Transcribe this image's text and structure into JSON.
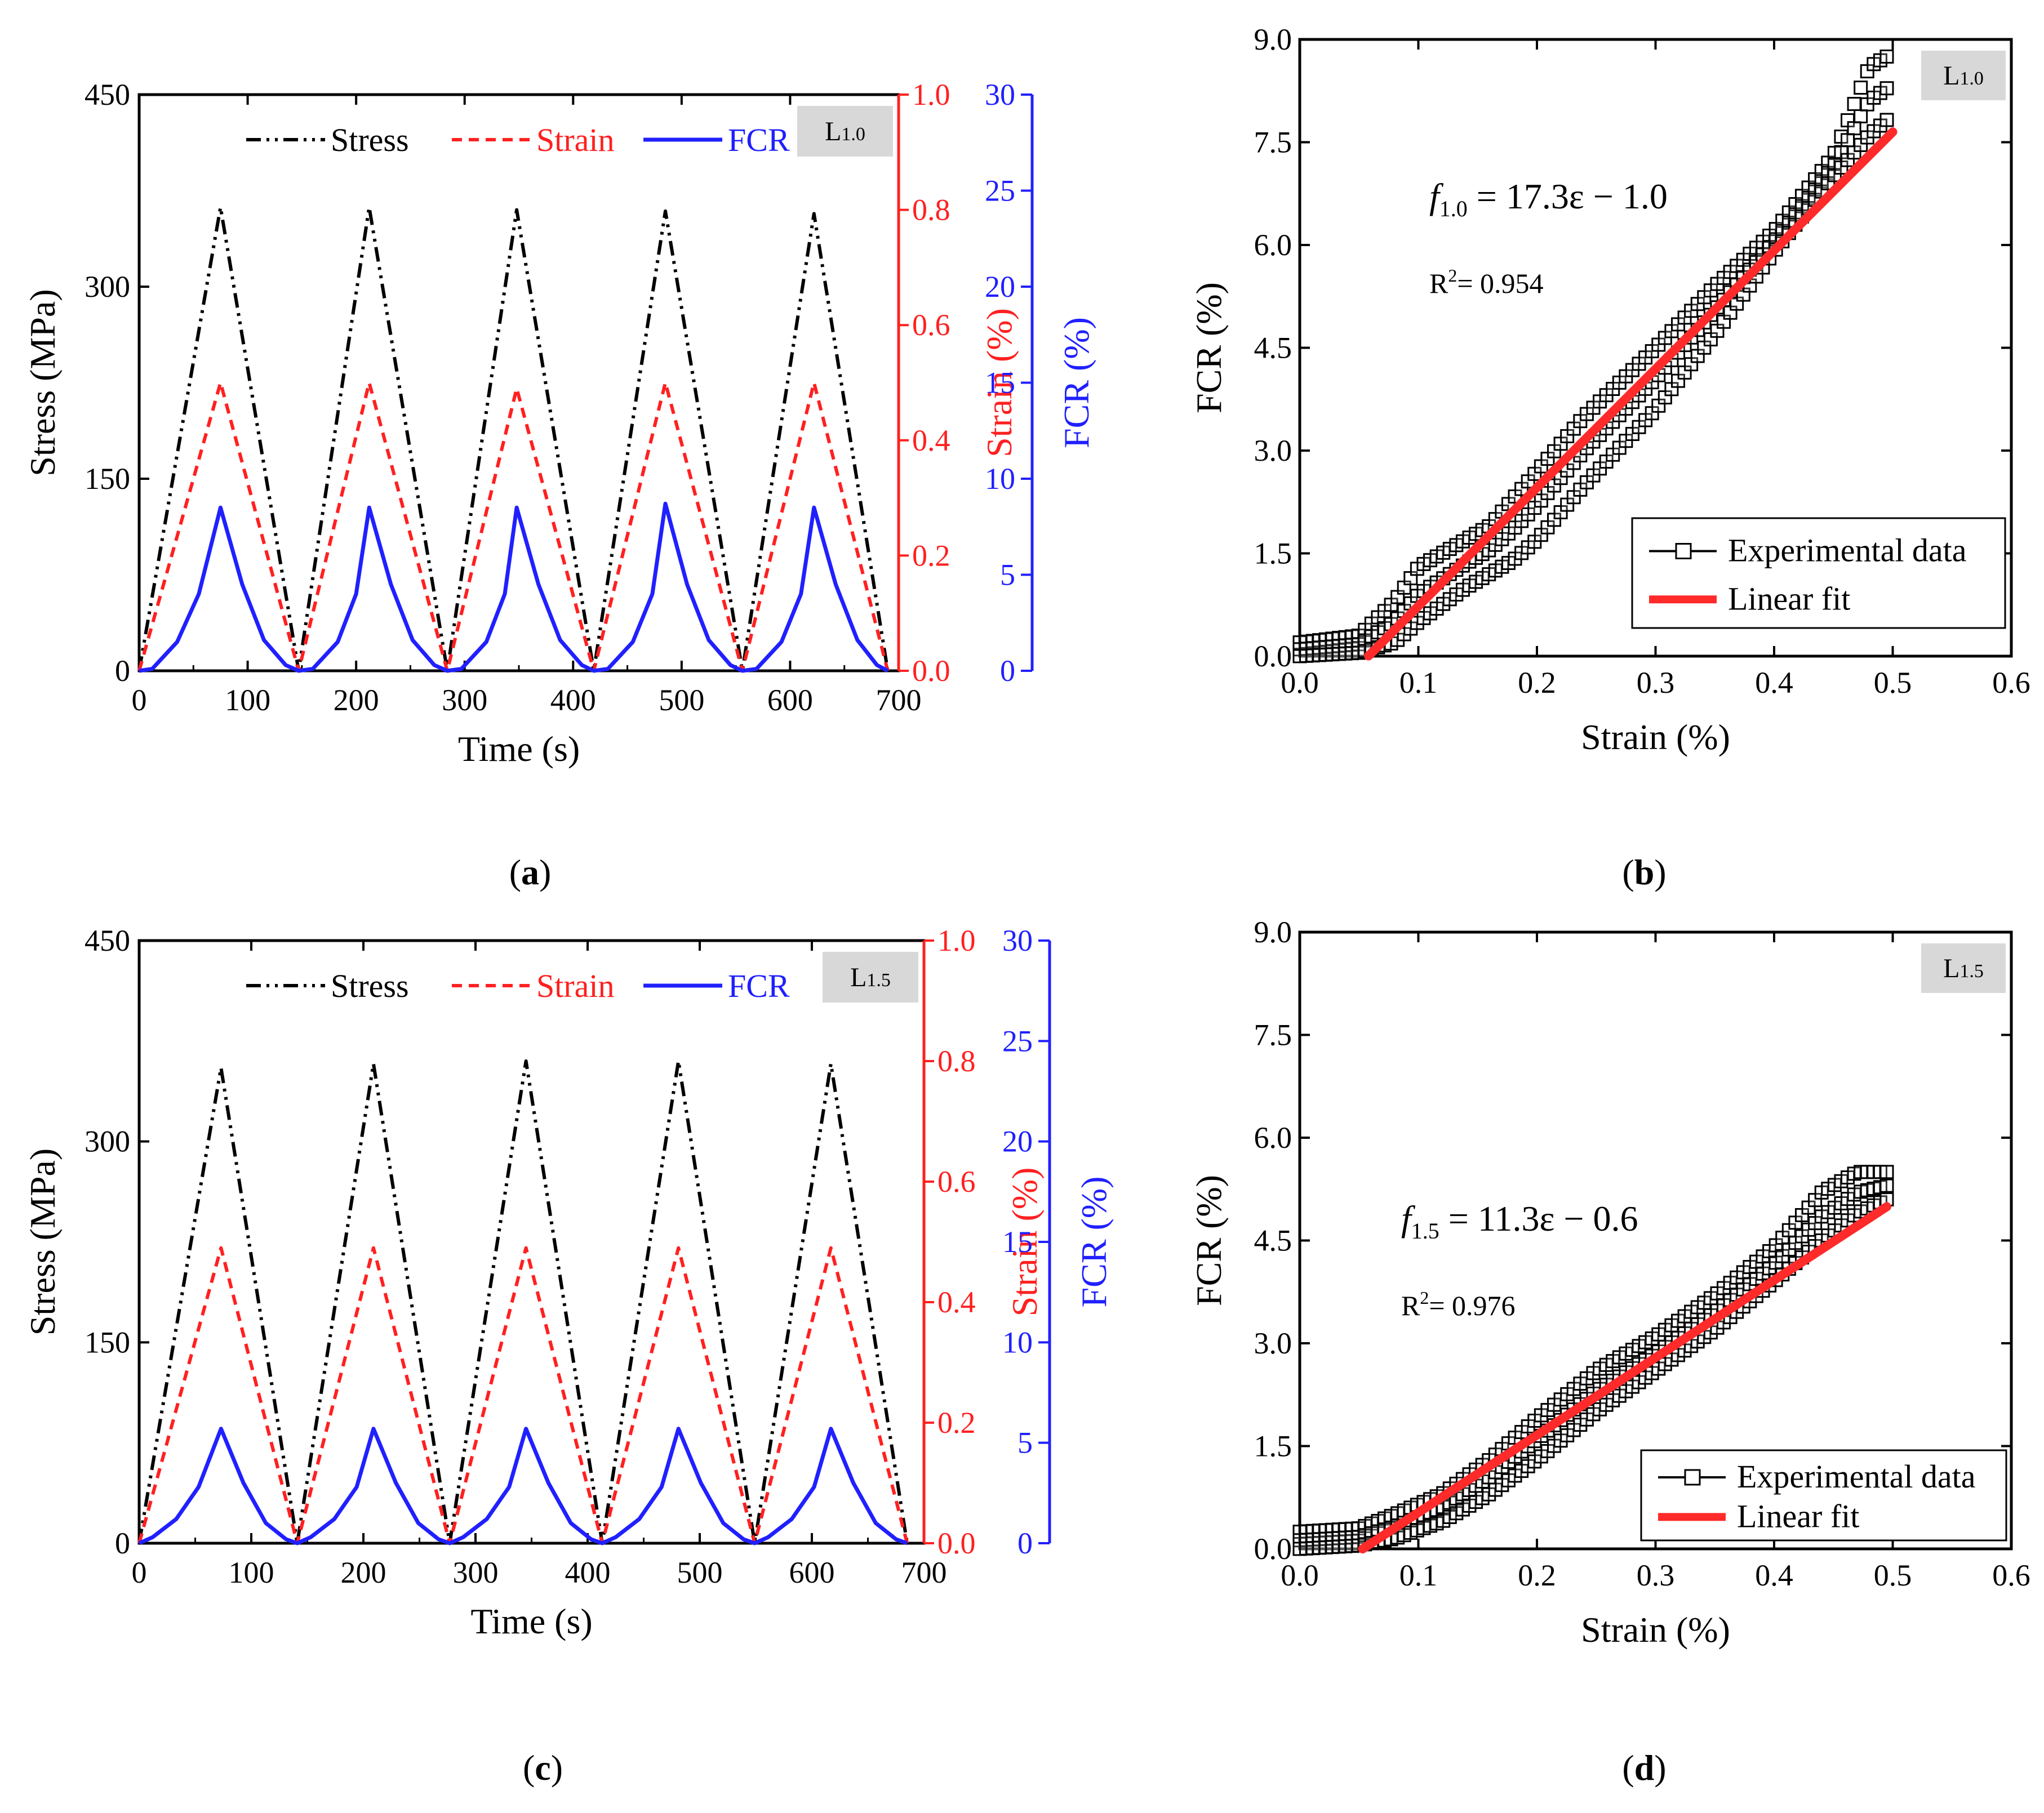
{
  "colors": {
    "stress": "#000000",
    "strain": "#ff2020",
    "fcr": "#2020ff",
    "fit": "#ff2a2a",
    "tag_bg": "#d8d8d8"
  },
  "chart_data": [
    {
      "panel": "(a)",
      "panel_letter": "a",
      "type": "line",
      "tag": {
        "base": "L",
        "sub": "1.0"
      },
      "xlabel": "Time (s)",
      "xlim": [
        0,
        700
      ],
      "xticks": [
        "0",
        "100",
        "200",
        "300",
        "400",
        "500",
        "600",
        "700"
      ],
      "axes": [
        {
          "key": "stress",
          "label": "Stress (MPa)",
          "ylim": [
            0,
            450
          ],
          "ticks": [
            "0",
            "150",
            "300",
            "450"
          ]
        },
        {
          "key": "strain",
          "label": "Strain (%)",
          "ylim": [
            0.0,
            1.0
          ],
          "ticks": [
            "0.0",
            "0.2",
            "0.4",
            "0.6",
            "0.8",
            "1.0"
          ]
        },
        {
          "key": "fcr",
          "label": "FCR (%)",
          "ylim": [
            0,
            30
          ],
          "ticks": [
            "0",
            "5",
            "10",
            "15",
            "20",
            "25",
            "30"
          ]
        }
      ],
      "legend": [
        "Stress",
        "Strain",
        "FCR"
      ],
      "series": [
        {
          "name": "Stress",
          "axis": "stress",
          "style": "dash-dot-dot",
          "x": [
            0,
            75,
            147,
            212,
            284,
            348,
            419,
            485,
            556,
            622,
            690
          ],
          "y": [
            0,
            362,
            0,
            362,
            0,
            360,
            0,
            359,
            0,
            357,
            0
          ]
        },
        {
          "name": "Strain",
          "axis": "strain",
          "style": "dashed",
          "x": [
            0,
            75,
            147,
            212,
            284,
            348,
            419,
            485,
            556,
            622,
            690
          ],
          "y": [
            0,
            0.5,
            0,
            0.5,
            0,
            0.49,
            0,
            0.5,
            0,
            0.5,
            0
          ]
        },
        {
          "name": "FCR",
          "axis": "fcr",
          "style": "solid",
          "x": [
            0,
            12,
            35,
            55,
            75,
            95,
            115,
            135,
            147,
            160,
            183,
            200,
            212,
            232,
            252,
            272,
            284,
            297,
            320,
            337,
            348,
            368,
            388,
            408,
            419,
            432,
            455,
            473,
            485,
            505,
            525,
            545,
            556,
            569,
            592,
            610,
            622,
            642,
            662,
            680,
            690
          ],
          "y": [
            0,
            0.1,
            1.5,
            4.0,
            8.5,
            4.5,
            1.6,
            0.3,
            0,
            0.1,
            1.5,
            4.0,
            8.5,
            4.5,
            1.6,
            0.3,
            0,
            0.1,
            1.5,
            4.0,
            8.5,
            4.5,
            1.6,
            0.3,
            0,
            0.1,
            1.5,
            4.0,
            8.7,
            4.5,
            1.6,
            0.3,
            0,
            0.1,
            1.5,
            4.0,
            8.5,
            4.5,
            1.6,
            0.3,
            0
          ]
        }
      ]
    },
    {
      "panel": "(b)",
      "panel_letter": "b",
      "type": "scatter",
      "tag": {
        "base": "L",
        "sub": "1.0"
      },
      "xlabel": "Strain (%)",
      "ylabel": "FCR (%)",
      "xlim": [
        0.0,
        0.6
      ],
      "ylim": [
        0.0,
        9.0
      ],
      "xticks": [
        "0.0",
        "0.1",
        "0.2",
        "0.3",
        "0.4",
        "0.5",
        "0.6"
      ],
      "yticks": [
        "0.0",
        "1.5",
        "3.0",
        "4.5",
        "6.0",
        "7.5",
        "9.0"
      ],
      "equation": {
        "f": "f",
        "sub": "1.0",
        "rest": " = 17.3ε − 1.0"
      },
      "r2": {
        "base": "R",
        "sup": "2",
        "rest": "= 0.954"
      },
      "legend": [
        "Experimental data",
        "Linear fit"
      ],
      "fit": {
        "slope": 17.3,
        "intercept": -1.0,
        "x": [
          0.058,
          0.5
        ]
      },
      "experimental": {
        "upper": {
          "x": [
            0.0,
            0.05,
            0.08,
            0.1,
            0.13,
            0.16,
            0.2,
            0.24,
            0.27,
            0.3,
            0.35,
            0.4,
            0.45,
            0.48,
            0.5
          ],
          "y": [
            0.2,
            0.3,
            0.8,
            1.3,
            1.6,
            1.9,
            2.7,
            3.5,
            4.0,
            4.5,
            5.4,
            6.2,
            7.3,
            8.6,
            8.8
          ]
        },
        "lower": {
          "x": [
            0.0,
            0.05,
            0.08,
            0.1,
            0.14,
            0.18,
            0.2,
            0.24,
            0.3,
            0.35,
            0.4,
            0.45,
            0.48,
            0.5
          ],
          "y": [
            0.0,
            0.05,
            0.2,
            0.5,
            1.0,
            1.4,
            1.7,
            2.5,
            3.6,
            4.7,
            5.9,
            7.0,
            7.6,
            7.9
          ]
        }
      }
    },
    {
      "panel": "(c)",
      "panel_letter": "c",
      "type": "line",
      "tag": {
        "base": "L",
        "sub": "1.5"
      },
      "xlabel": "Time (s)",
      "xlim": [
        0,
        700
      ],
      "xticks": [
        "0",
        "100",
        "200",
        "300",
        "400",
        "500",
        "600",
        "700"
      ],
      "axes": [
        {
          "key": "stress",
          "label": "Stress (MPa)",
          "ylim": [
            0,
            450
          ],
          "ticks": [
            "0",
            "150",
            "300",
            "450"
          ]
        },
        {
          "key": "strain",
          "label": "Strain (%)",
          "ylim": [
            0.0,
            1.0
          ],
          "ticks": [
            "0.0",
            "0.2",
            "0.4",
            "0.6",
            "0.8",
            "1.0"
          ]
        },
        {
          "key": "fcr",
          "label": "FCR (%)",
          "ylim": [
            0,
            30
          ],
          "ticks": [
            "0",
            "5",
            "10",
            "15",
            "20",
            "25",
            "30"
          ]
        }
      ],
      "legend": [
        "Stress",
        "Strain",
        "FCR"
      ],
      "series": [
        {
          "name": "Stress",
          "axis": "stress",
          "style": "dash-dot-dot",
          "x": [
            0,
            73,
            141,
            209,
            277,
            345,
            413,
            481,
            549,
            617,
            685
          ],
          "y": [
            0,
            355,
            0,
            358,
            0,
            360,
            0,
            360,
            0,
            358,
            0
          ]
        },
        {
          "name": "Strain",
          "axis": "strain",
          "style": "dashed",
          "x": [
            0,
            73,
            141,
            209,
            277,
            345,
            413,
            481,
            549,
            617,
            685
          ],
          "y": [
            0,
            0.49,
            0,
            0.49,
            0,
            0.49,
            0,
            0.49,
            0,
            0.49,
            0
          ]
        },
        {
          "name": "FCR",
          "axis": "fcr",
          "style": "solid",
          "x": [
            0,
            12,
            33,
            53,
            73,
            93,
            113,
            131,
            141,
            153,
            174,
            194,
            209,
            229,
            249,
            267,
            277,
            289,
            310,
            330,
            345,
            365,
            385,
            403,
            413,
            425,
            446,
            466,
            481,
            501,
            521,
            539,
            549,
            561,
            582,
            602,
            617,
            637,
            657,
            675,
            685
          ],
          "y": [
            0,
            0.3,
            1.2,
            2.8,
            5.7,
            3.0,
            1.0,
            0.2,
            0,
            0.3,
            1.2,
            2.8,
            5.7,
            3.0,
            1.0,
            0.2,
            0,
            0.3,
            1.2,
            2.8,
            5.7,
            3.0,
            1.0,
            0.2,
            0,
            0.3,
            1.2,
            2.8,
            5.7,
            3.0,
            1.0,
            0.2,
            0,
            0.3,
            1.2,
            2.8,
            5.7,
            3.0,
            1.0,
            0.2,
            0
          ]
        }
      ]
    },
    {
      "panel": "(d)",
      "panel_letter": "d",
      "type": "scatter",
      "tag": {
        "base": "L",
        "sub": "1.5"
      },
      "xlabel": "Strain (%)",
      "ylabel": "FCR (%)",
      "xlim": [
        0.0,
        0.6
      ],
      "ylim": [
        0.0,
        9.0
      ],
      "xticks": [
        "0.0",
        "0.1",
        "0.2",
        "0.3",
        "0.4",
        "0.5",
        "0.6"
      ],
      "yticks": [
        "0.0",
        "1.5",
        "3.0",
        "4.5",
        "6.0",
        "7.5",
        "9.0"
      ],
      "equation": {
        "f": "f",
        "sub": "1.5",
        "rest": " = 11.3ε − 0.6"
      },
      "r2": {
        "base": "R",
        "sup": "2",
        "rest": "= 0.976"
      },
      "legend": [
        "Experimental data",
        "Linear fit"
      ],
      "fit": {
        "slope": 11.3,
        "intercept": -0.6,
        "x": [
          0.053,
          0.495
        ]
      },
      "experimental": {
        "upper": {
          "x": [
            0.0,
            0.05,
            0.08,
            0.12,
            0.16,
            0.2,
            0.25,
            0.3,
            0.35,
            0.4,
            0.44,
            0.47,
            0.495
          ],
          "y": [
            0.25,
            0.3,
            0.5,
            0.8,
            1.3,
            1.9,
            2.6,
            3.1,
            3.7,
            4.4,
            5.2,
            5.5,
            5.5
          ]
        },
        "lower": {
          "x": [
            0.0,
            0.05,
            0.08,
            0.12,
            0.16,
            0.2,
            0.25,
            0.3,
            0.35,
            0.4,
            0.44,
            0.47,
            0.495
          ],
          "y": [
            0.0,
            0.05,
            0.15,
            0.4,
            0.8,
            1.3,
            2.0,
            2.6,
            3.2,
            3.9,
            4.5,
            4.9,
            5.1
          ]
        }
      }
    }
  ]
}
